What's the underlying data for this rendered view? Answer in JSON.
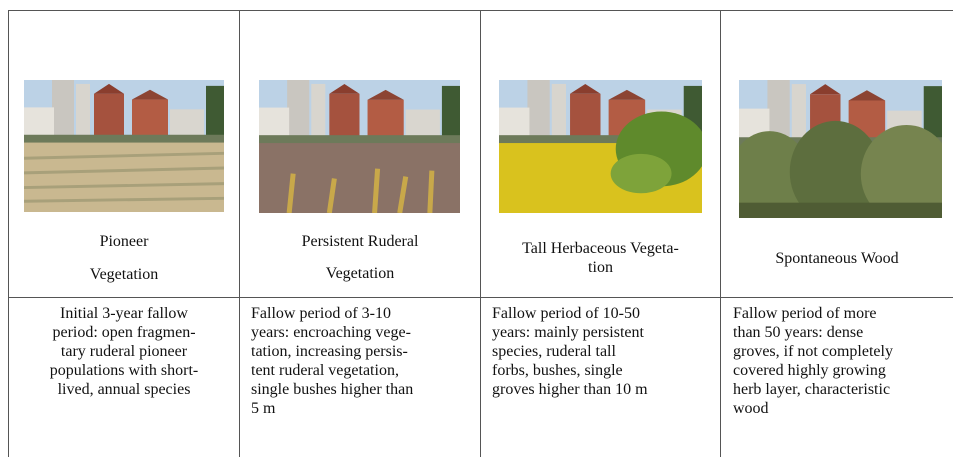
{
  "table": {
    "columns": [
      {
        "title_lines": [
          "Pioneer",
          "Vegetation"
        ],
        "description_lines": [
          "Initial 3-year fallow",
          "period: open fragmen-",
          "tary ruderal pioneer",
          "populations with short-",
          "lived, annual species"
        ]
      },
      {
        "title_lines": [
          "Persistent Ruderal",
          "Vegetation"
        ],
        "description_lines": [
          "Fallow period of 3-10",
          "years: encroaching vege-",
          "tation, increasing persis-",
          "tent ruderal vegetation,",
          "single bushes higher than",
          "5 m"
        ]
      },
      {
        "title_lines": [
          "Tall Herbaceous Vegeta-",
          "tion"
        ],
        "description_lines": [
          "Fallow period of 10-50",
          "years: mainly persistent",
          "species, ruderal tall",
          "forbs, bushes, single",
          "groves higher than 10 m"
        ]
      },
      {
        "title_lines": [
          "Spontaneous Wood"
        ],
        "description_lines": [
          "Fallow period of more",
          "than 50 years: dense",
          "groves, if not completely",
          "covered highly growing",
          "herb layer, characteristic",
          "wood"
        ]
      }
    ]
  }
}
